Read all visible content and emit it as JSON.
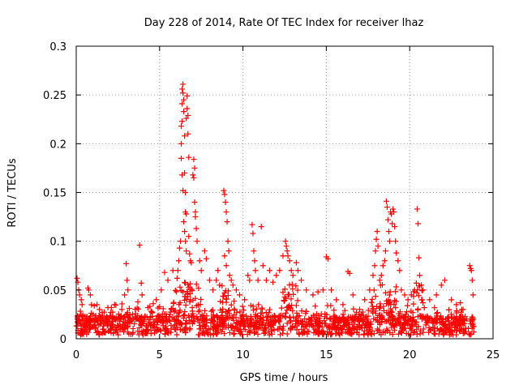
{
  "chart_data": {
    "type": "scatter",
    "title": "Day 228 of 2014, Rate Of TEC Index for receiver lhaz",
    "xlabel": "GPS time / hours",
    "ylabel": "ROTI / TECUs",
    "xlim": [
      0,
      25
    ],
    "ylim": [
      0,
      0.3
    ],
    "xticks": [
      0,
      5,
      10,
      15,
      20,
      25
    ],
    "xtick_labels": [
      "0",
      "5",
      "10",
      "15",
      "20",
      "25"
    ],
    "yticks": [
      0,
      0.05,
      0.1,
      0.15,
      0.2,
      0.25,
      0.3
    ],
    "ytick_labels": [
      "0",
      "0.05",
      "0.1",
      "0.15",
      "0.2",
      "0.25",
      "0.3"
    ],
    "grid": true,
    "marker": "plus",
    "series": [
      {
        "name": "ROTI",
        "color": "#ff0000",
        "points": [
          [
            0.05,
            0.062
          ],
          [
            0.1,
            0.058
          ],
          [
            0.15,
            0.05
          ],
          [
            0.2,
            0.045
          ],
          [
            0.3,
            0.04
          ],
          [
            0.35,
            0.035
          ],
          [
            0.7,
            0.052
          ],
          [
            0.75,
            0.05
          ],
          [
            0.85,
            0.045
          ],
          [
            1.4,
            0.03
          ],
          [
            1.9,
            0.032
          ],
          [
            2.3,
            0.035
          ],
          [
            2.9,
            0.045
          ],
          [
            3.0,
            0.077
          ],
          [
            3.05,
            0.06
          ],
          [
            3.1,
            0.05
          ],
          [
            3.8,
            0.096
          ],
          [
            3.9,
            0.057
          ],
          [
            3.95,
            0.045
          ],
          [
            4.3,
            0.032
          ],
          [
            4.8,
            0.04
          ],
          [
            5.1,
            0.05
          ],
          [
            5.3,
            0.068
          ],
          [
            5.5,
            0.06
          ],
          [
            5.8,
            0.07
          ],
          [
            6.05,
            0.062
          ],
          [
            6.1,
            0.07
          ],
          [
            6.15,
            0.08
          ],
          [
            6.2,
            0.093
          ],
          [
            6.25,
            0.1
          ],
          [
            6.3,
            0.2
          ],
          [
            6.3,
            0.218
          ],
          [
            6.35,
            0.223
          ],
          [
            6.35,
            0.241
          ],
          [
            6.35,
            0.256
          ],
          [
            6.4,
            0.261
          ],
          [
            6.4,
            0.252
          ],
          [
            6.45,
            0.245
          ],
          [
            6.45,
            0.233
          ],
          [
            6.5,
            0.208
          ],
          [
            6.5,
            0.17
          ],
          [
            6.55,
            0.15
          ],
          [
            6.55,
            0.13
          ],
          [
            6.6,
            0.128
          ],
          [
            6.6,
            0.226
          ],
          [
            6.65,
            0.236
          ],
          [
            6.65,
            0.249
          ],
          [
            6.7,
            0.229
          ],
          [
            6.7,
            0.21
          ],
          [
            6.75,
            0.186
          ],
          [
            6.75,
            0.105
          ],
          [
            6.8,
            0.087
          ],
          [
            6.85,
            0.08
          ],
          [
            6.9,
            0.078
          ],
          [
            6.3,
            0.185
          ],
          [
            6.35,
            0.168
          ],
          [
            6.4,
            0.152
          ],
          [
            6.45,
            0.12
          ],
          [
            6.5,
            0.11
          ],
          [
            6.55,
            0.1
          ],
          [
            6.6,
            0.09
          ],
          [
            7.0,
            0.168
          ],
          [
            7.05,
            0.165
          ],
          [
            7.1,
            0.14
          ],
          [
            7.15,
            0.125
          ],
          [
            7.2,
            0.113
          ],
          [
            7.25,
            0.1
          ],
          [
            7.05,
            0.184
          ],
          [
            7.1,
            0.175
          ],
          [
            7.15,
            0.13
          ],
          [
            7.4,
            0.08
          ],
          [
            7.5,
            0.07
          ],
          [
            7.7,
            0.09
          ],
          [
            7.8,
            0.082
          ],
          [
            8.0,
            0.06
          ],
          [
            8.2,
            0.05
          ],
          [
            8.4,
            0.06
          ],
          [
            8.5,
            0.07
          ],
          [
            8.6,
            0.055
          ],
          [
            8.85,
            0.152
          ],
          [
            8.9,
            0.148
          ],
          [
            8.95,
            0.14
          ],
          [
            9.0,
            0.13
          ],
          [
            9.05,
            0.12
          ],
          [
            9.1,
            0.1
          ],
          [
            9.15,
            0.09
          ],
          [
            8.9,
            0.085
          ],
          [
            9.0,
            0.075
          ],
          [
            9.2,
            0.065
          ],
          [
            9.3,
            0.06
          ],
          [
            9.4,
            0.055
          ],
          [
            9.6,
            0.05
          ],
          [
            9.8,
            0.045
          ],
          [
            10.1,
            0.04
          ],
          [
            10.3,
            0.065
          ],
          [
            10.4,
            0.06
          ],
          [
            10.55,
            0.117
          ],
          [
            10.6,
            0.108
          ],
          [
            10.65,
            0.09
          ],
          [
            10.7,
            0.08
          ],
          [
            10.75,
            0.07
          ],
          [
            10.9,
            0.06
          ],
          [
            11.1,
            0.115
          ],
          [
            11.2,
            0.075
          ],
          [
            11.4,
            0.06
          ],
          [
            11.6,
            0.07
          ],
          [
            11.8,
            0.058
          ],
          [
            12.0,
            0.065
          ],
          [
            12.2,
            0.07
          ],
          [
            12.4,
            0.085
          ],
          [
            12.55,
            0.1
          ],
          [
            12.6,
            0.095
          ],
          [
            12.65,
            0.09
          ],
          [
            12.7,
            0.085
          ],
          [
            12.8,
            0.08
          ],
          [
            12.9,
            0.07
          ],
          [
            13.0,
            0.065
          ],
          [
            13.2,
            0.078
          ],
          [
            13.3,
            0.07
          ],
          [
            13.5,
            0.06
          ],
          [
            13.8,
            0.05
          ],
          [
            14.2,
            0.045
          ],
          [
            14.5,
            0.048
          ],
          [
            14.8,
            0.05
          ],
          [
            15.0,
            0.084
          ],
          [
            15.1,
            0.082
          ],
          [
            15.3,
            0.05
          ],
          [
            15.6,
            0.04
          ],
          [
            16.0,
            0.035
          ],
          [
            16.3,
            0.069
          ],
          [
            16.4,
            0.067
          ],
          [
            16.6,
            0.045
          ],
          [
            17.0,
            0.03
          ],
          [
            17.3,
            0.04
          ],
          [
            17.6,
            0.05
          ],
          [
            17.8,
            0.065
          ],
          [
            17.9,
            0.075
          ],
          [
            17.95,
            0.09
          ],
          [
            18.0,
            0.102
          ],
          [
            18.05,
            0.11
          ],
          [
            18.1,
            0.095
          ],
          [
            18.2,
            0.06
          ],
          [
            18.3,
            0.065
          ],
          [
            18.4,
            0.075
          ],
          [
            18.5,
            0.08
          ],
          [
            18.55,
            0.09
          ],
          [
            18.6,
            0.141
          ],
          [
            18.65,
            0.135
          ],
          [
            18.7,
            0.122
          ],
          [
            18.75,
            0.11
          ],
          [
            18.8,
            0.1
          ],
          [
            18.85,
            0.13
          ],
          [
            18.9,
            0.128
          ],
          [
            18.95,
            0.118
          ],
          [
            19.0,
            0.133
          ],
          [
            19.05,
            0.13
          ],
          [
            19.1,
            0.115
          ],
          [
            19.15,
            0.1
          ],
          [
            19.2,
            0.088
          ],
          [
            19.3,
            0.08
          ],
          [
            19.4,
            0.07
          ],
          [
            19.5,
            0.05
          ],
          [
            19.7,
            0.045
          ],
          [
            19.9,
            0.04
          ],
          [
            20.1,
            0.045
          ],
          [
            20.3,
            0.05
          ],
          [
            20.4,
            0.057
          ],
          [
            20.45,
            0.133
          ],
          [
            20.5,
            0.118
          ],
          [
            20.55,
            0.083
          ],
          [
            20.6,
            0.065
          ],
          [
            20.7,
            0.055
          ],
          [
            20.8,
            0.05
          ],
          [
            21.2,
            0.04
          ],
          [
            21.6,
            0.045
          ],
          [
            21.9,
            0.055
          ],
          [
            22.1,
            0.06
          ],
          [
            22.5,
            0.04
          ],
          [
            22.8,
            0.035
          ],
          [
            23.2,
            0.03
          ],
          [
            23.6,
            0.075
          ],
          [
            23.65,
            0.072
          ],
          [
            23.7,
            0.07
          ],
          [
            23.75,
            0.06
          ],
          [
            23.8,
            0.045
          ]
        ]
      }
    ]
  }
}
